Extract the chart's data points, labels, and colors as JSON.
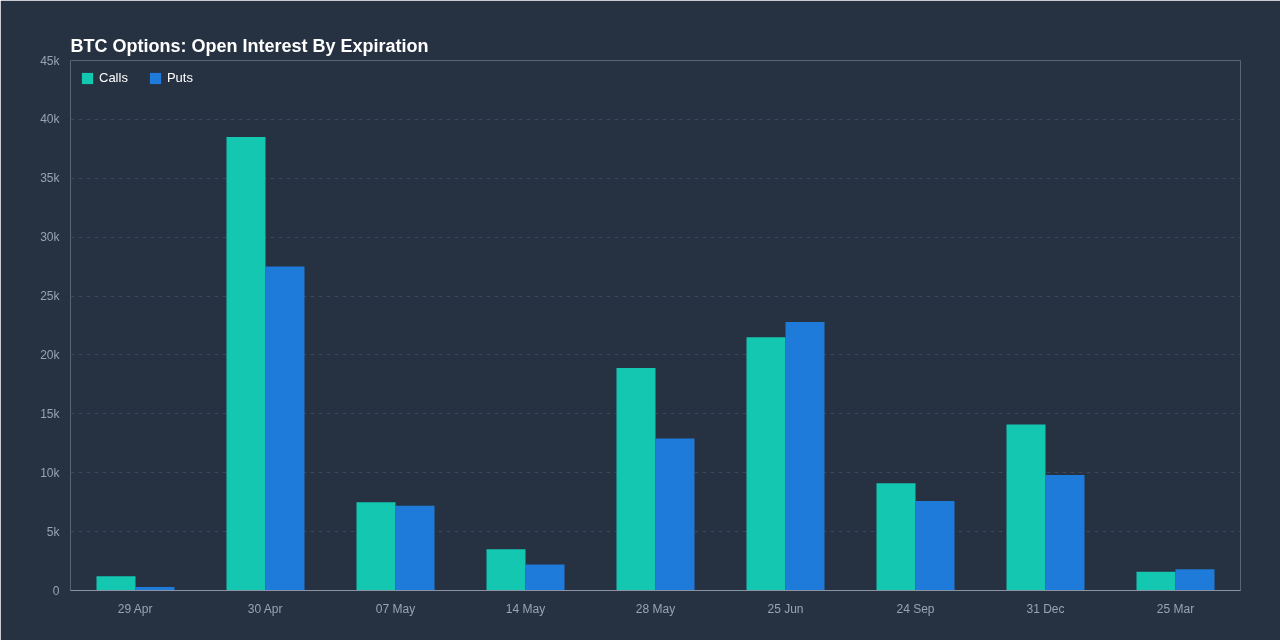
{
  "chart_data": {
    "type": "bar",
    "title": "BTC Options: Open Interest By Expiration",
    "categories": [
      "29 Apr",
      "30 Apr",
      "07 May",
      "14 May",
      "28 May",
      "25 Jun",
      "24 Sep",
      "31 Dec",
      "25 Mar"
    ],
    "series": [
      {
        "name": "Calls",
        "color": "#13c7b0",
        "values": [
          1200,
          38500,
          7500,
          3500,
          18900,
          21500,
          9100,
          14100,
          1600
        ]
      },
      {
        "name": "Puts",
        "color": "#1e7bd9",
        "values": [
          300,
          27500,
          7200,
          2200,
          12900,
          22800,
          7600,
          9800,
          1800
        ]
      }
    ],
    "ylim": [
      0,
      45000
    ],
    "yticks": [
      0,
      {
        "value": 5000,
        "label": "5k"
      },
      {
        "value": 10000,
        "label": "10k"
      },
      {
        "value": 15000,
        "label": "15k"
      },
      {
        "value": 20000,
        "label": "20k"
      },
      {
        "value": 25000,
        "label": "25k"
      },
      {
        "value": 30000,
        "label": "30k"
      },
      {
        "value": 35000,
        "label": "35k"
      },
      {
        "value": 40000,
        "label": "40k"
      },
      {
        "value": 45000,
        "label": "45k"
      }
    ],
    "grid": "y",
    "legend": "top left"
  }
}
